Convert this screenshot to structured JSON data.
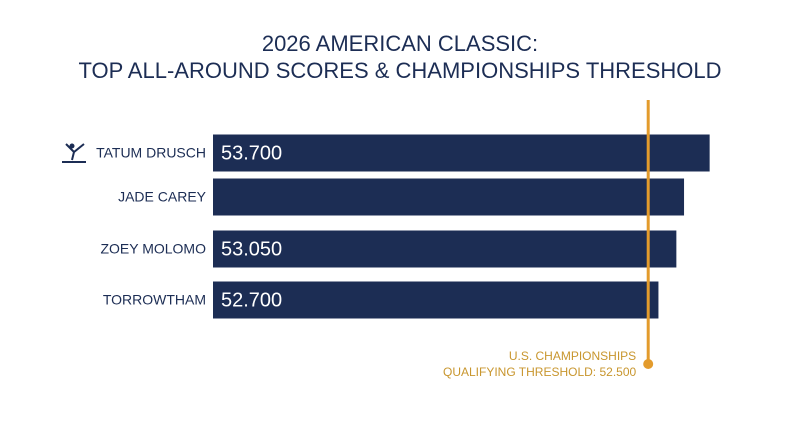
{
  "chart_data": {
    "type": "bar",
    "orientation": "horizontal",
    "title": [
      "2026 AMERICAN CLASSIC:",
      "TOP ALL-AROUND SCORES & CHAMPIONSHIPS THRESHOLD"
    ],
    "categories": [
      "TATUM DRUSCH",
      "JADE CAREY",
      "ZOEY MOLOMO",
      "TORROWTHAM"
    ],
    "values": [
      53.7,
      53.2,
      53.05,
      52.7
    ],
    "value_labels": [
      "53.700",
      null,
      "53.050",
      "52.700"
    ],
    "color": "#1c2d54",
    "xlim": [
      44,
      54
    ],
    "threshold": {
      "value": 52.5,
      "label": [
        "U.S. CHAMPIONSHIPS",
        "QUALIFYING THRESHOLD: 52.500"
      ],
      "color": "#e39b2c"
    }
  }
}
